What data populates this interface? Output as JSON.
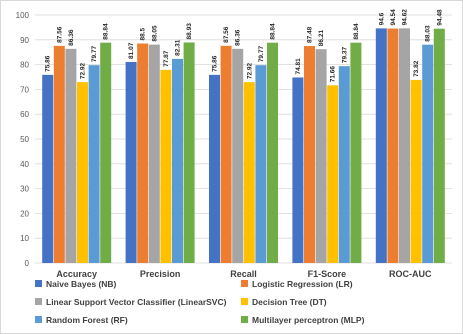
{
  "chart_data": {
    "type": "bar",
    "title": "",
    "xlabel": "",
    "ylabel": "",
    "ylim": [
      0,
      100
    ],
    "yticks": [
      0,
      10,
      20,
      30,
      40,
      50,
      60,
      70,
      80,
      90,
      100
    ],
    "grid": true,
    "legend_position": "bottom",
    "categories": [
      "Accuracy",
      "Precision",
      "Recall",
      "F1-Score",
      "ROC-AUC"
    ],
    "series": [
      {
        "name": "Naive Bayes (NB)",
        "color": "#4472c4",
        "values": [
          75.86,
          81.07,
          75.86,
          74.81,
          94.6
        ]
      },
      {
        "name": "Logistic Regression (LR)",
        "color": "#ed7d31",
        "values": [
          87.56,
          88.5,
          87.56,
          87.48,
          94.54
        ]
      },
      {
        "name": "Linear Support Vector Classifier (LinearSVC)",
        "color": "#a5a5a5",
        "values": [
          86.36,
          88.05,
          86.36,
          86.21,
          94.62
        ]
      },
      {
        "name": "Decision Tree (DT)",
        "color": "#ffc000",
        "values": [
          72.92,
          77.87,
          72.92,
          71.66,
          73.82
        ]
      },
      {
        "name": "Random Forest (RF)",
        "color": "#5b9bd5",
        "values": [
          79.77,
          82.31,
          79.77,
          79.37,
          88.03
        ]
      },
      {
        "name": "Multilayer perceptron (MLP)",
        "color": "#70ad47",
        "values": [
          88.84,
          88.93,
          88.84,
          88.84,
          94.48
        ]
      }
    ],
    "data_labels": [
      [
        "75.86",
        "81.07",
        "75.86",
        "74.81",
        "94.6"
      ],
      [
        "87.56",
        "88.5",
        "87.56",
        "87.48",
        "94.54"
      ],
      [
        "86.36",
        "88.05",
        "86.36",
        "86.21",
        "94.62"
      ],
      [
        "72.92",
        "77.87",
        "72.92",
        "71.66",
        "73.82"
      ],
      [
        "79.77",
        "82.31",
        "79.77",
        "79.37",
        "88.03"
      ],
      [
        "88.84",
        "88.93",
        "88.84",
        "88.84",
        "94.48"
      ]
    ]
  }
}
